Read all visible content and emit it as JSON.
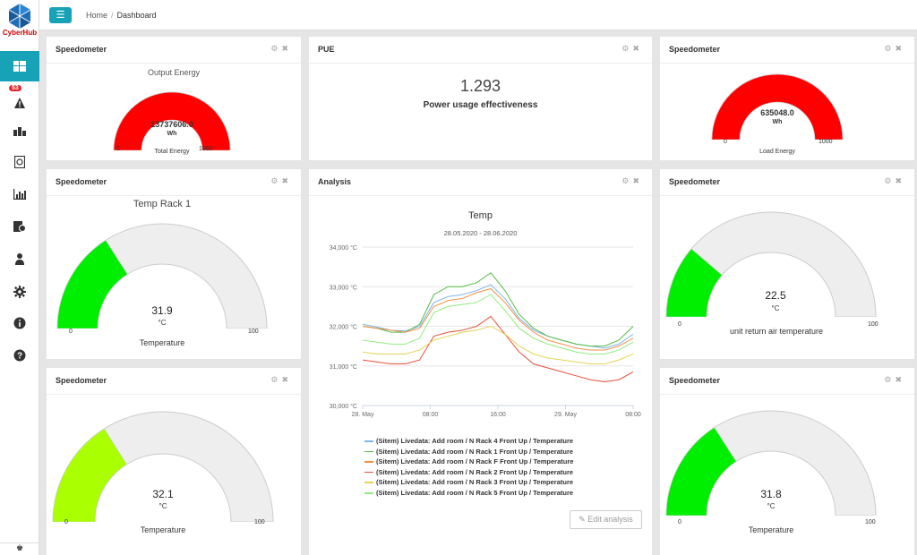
{
  "app": {
    "logo_text": "CyberHub"
  },
  "sidebar": {
    "items": [
      {
        "icon": "dashboard-icon",
        "active": true
      },
      {
        "icon": "alarm-icon",
        "badge": "53"
      },
      {
        "icon": "sites-icon"
      },
      {
        "icon": "reports-icon"
      },
      {
        "icon": "analysis-icon"
      },
      {
        "icon": "inventory-icon"
      },
      {
        "icon": "users-icon"
      },
      {
        "icon": "gear-icon"
      },
      {
        "icon": "info-icon"
      },
      {
        "icon": "help-icon"
      }
    ]
  },
  "breadcrumb": {
    "home": "Home",
    "separator": "/",
    "current": "Dashboard"
  },
  "panels": {
    "speedometer_label": "Speedometer",
    "pue_title": "PUE",
    "analysis_title": "Analysis",
    "gauge_output": {
      "top_label": "Output Energy",
      "value": "13737606.0",
      "unit": "Wh",
      "min": "0",
      "max": "1000",
      "label": "Total Energy",
      "fraction": 1.0,
      "color": "#ff0000"
    },
    "pue": {
      "value": "1.293",
      "label": "Power usage effectiveness"
    },
    "gauge_load": {
      "value": "635048.0",
      "unit": "Wh",
      "min": "0",
      "max": "1000",
      "label": "Load Energy",
      "fraction": 1.0,
      "color": "#ff0000"
    },
    "gauge_rack1": {
      "top_label": "Temp Rack 1",
      "value": "31.9",
      "unit": "°C",
      "min": "0",
      "max": "100",
      "label": "Temperature",
      "fraction": 0.319,
      "color": "#00ee00"
    },
    "gauge_return": {
      "value": "22.5",
      "unit": "°C",
      "min": "0",
      "max": "100",
      "label": "unit return air temperature",
      "fraction": 0.225,
      "color": "#00ee00"
    },
    "gauge_temp2": {
      "value": "32.1",
      "unit": "°C",
      "min": "0",
      "max": "100",
      "label": "Temperature",
      "fraction": 0.321,
      "color": "#aaff00"
    },
    "gauge_temp3": {
      "value": "31.8",
      "unit": "°C",
      "min": "0",
      "max": "100",
      "label": "Temperature",
      "fraction": 0.318,
      "color": "#00ee00"
    },
    "edit_analysis": "Edit analysis"
  },
  "chart_data": {
    "type": "line",
    "title": "Temp",
    "subtitle": "28.05.2020 - 28.06.2020",
    "y_ticks": [
      "34,000 °C",
      "33,000 °C",
      "32,000 °C",
      "31,000 °C",
      "30,000 °C"
    ],
    "x_ticks": [
      "28. May",
      "08:00",
      "16:00",
      "29. May",
      "08:00"
    ],
    "ylim": [
      30000,
      34000
    ],
    "x": [
      0,
      2,
      4,
      6,
      8,
      10,
      12,
      14,
      16,
      18,
      20,
      22,
      24,
      26,
      28,
      30,
      32,
      34,
      36,
      38
    ],
    "series": [
      {
        "name": "(Sitem) Livedata: Add room / N Rack 4 Front Up / Temperature",
        "color": "#7cb5ec",
        "values": [
          32050,
          31980,
          31900,
          31880,
          32000,
          32600,
          32750,
          32800,
          32900,
          33050,
          32700,
          32200,
          31900,
          31750,
          31650,
          31550,
          31500,
          31450,
          31550,
          31800
        ]
      },
      {
        "name": "(Sitem) Livedata: Add room / N Rack 1 Front Up / Temperature",
        "color": "#55bb44",
        "values": [
          32000,
          31950,
          31850,
          31850,
          32050,
          32800,
          33000,
          33000,
          33100,
          33350,
          32900,
          32300,
          31950,
          31750,
          31650,
          31550,
          31500,
          31500,
          31650,
          32000
        ]
      },
      {
        "name": "(Sitem) Livedata: Add room / N Rack F Front Up / Temperature",
        "color": "#f28f43",
        "values": [
          32000,
          31950,
          31900,
          31850,
          31950,
          32500,
          32650,
          32700,
          32850,
          32950,
          32600,
          32150,
          31850,
          31650,
          31550,
          31450,
          31400,
          31400,
          31500,
          31700
        ]
      },
      {
        "name": "(Sitem) Livedata: Add room / N Rack 2 Front Up / Temperature",
        "color": "#e8503a",
        "values": [
          31150,
          31100,
          31050,
          31050,
          31150,
          31750,
          31850,
          31900,
          32000,
          32250,
          31800,
          31350,
          31050,
          30950,
          30850,
          30750,
          30650,
          30600,
          30650,
          30850
        ]
      },
      {
        "name": "(Sitem) Livedata: Add room / N Rack 3 Front Up / Temperature",
        "color": "#e4d354",
        "values": [
          31350,
          31300,
          31300,
          31300,
          31400,
          31650,
          31750,
          31850,
          31900,
          32000,
          31800,
          31500,
          31300,
          31200,
          31150,
          31100,
          31050,
          31050,
          31150,
          31300
        ]
      },
      {
        "name": "(Sitem) Livedata: Add room / N Rack 5 Front Up / Temperature",
        "color": "#90ed7d",
        "values": [
          31650,
          31600,
          31550,
          31550,
          31700,
          32350,
          32500,
          32550,
          32600,
          32800,
          32400,
          31950,
          31700,
          31550,
          31450,
          31350,
          31300,
          31300,
          31400,
          31600
        ]
      }
    ]
  }
}
